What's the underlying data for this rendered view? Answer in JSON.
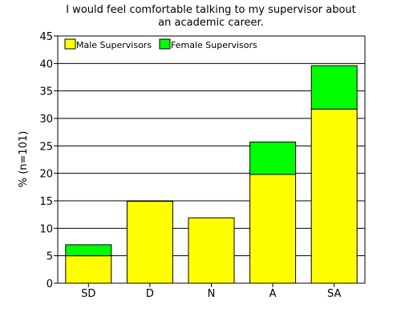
{
  "chart_data": {
    "type": "bar",
    "stacked": true,
    "title_lines": [
      "I would feel comfortable talking to my supervisor about",
      "an academic career."
    ],
    "xlabel": "",
    "ylabel": "% (n=101)",
    "categories": [
      "SD",
      "D",
      "N",
      "A",
      "SA"
    ],
    "series": [
      {
        "name": "Male Supervisors",
        "color": "#ffff00",
        "values": [
          5,
          14.9,
          11.9,
          19.8,
          31.7
        ]
      },
      {
        "name": "Female Supervisors",
        "color": "#00ff00",
        "values": [
          2,
          0,
          0,
          5.9,
          7.9
        ]
      }
    ],
    "ylim": [
      0,
      45
    ],
    "yticks": [
      0,
      5,
      10,
      15,
      20,
      25,
      30,
      35,
      40,
      45
    ],
    "grid": true,
    "legend_position": "top-left"
  }
}
